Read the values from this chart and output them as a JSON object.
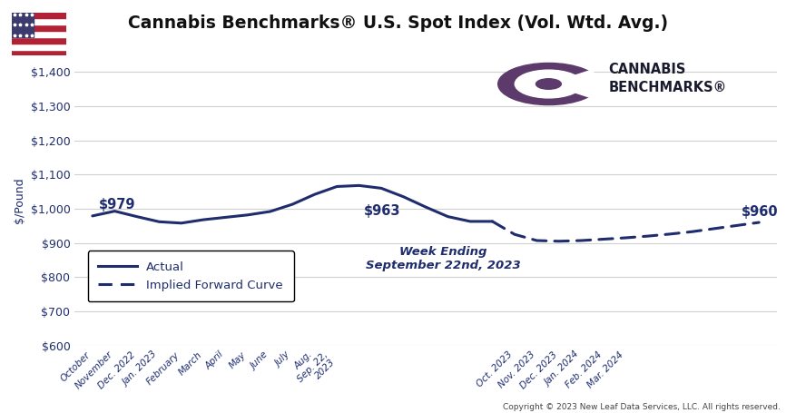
{
  "title": "Cannabis Benchmarks® U.S. Spot Index (Vol. Wtd. Avg.)",
  "ylabel": "$/Pound",
  "copyright": "Copyright © 2023 New Leaf Data Services, LLC. All rights reserved.",
  "line_color": "#1f2d6e",
  "background_color": "#ffffff",
  "grid_color": "#d0d0d0",
  "ylim": [
    600,
    1450
  ],
  "yticks": [
    600,
    700,
    800,
    900,
    1000,
    1100,
    1200,
    1300,
    1400
  ],
  "logo_color": "#5c3a6b",
  "legend_actual": "Actual",
  "legend_forward": "Implied Forward Curve",
  "tick_color": "#1f2d6e",
  "actual_x": [
    0,
    1,
    2,
    3,
    4,
    5,
    6,
    7,
    8,
    9,
    10,
    11,
    12,
    13,
    14,
    15,
    16,
    17,
    18
  ],
  "actual_y": [
    979,
    993,
    977,
    962,
    958,
    968,
    975,
    982,
    992,
    1013,
    1042,
    1065,
    1068,
    1060,
    1035,
    1005,
    977,
    963,
    963
  ],
  "forward_x": [
    18,
    19,
    20,
    21,
    22,
    23,
    24,
    25,
    26,
    27,
    28,
    29,
    30
  ],
  "forward_y": [
    963,
    925,
    907,
    905,
    907,
    911,
    915,
    920,
    926,
    933,
    942,
    951,
    960
  ],
  "tick_positions": [
    0,
    1,
    2,
    3,
    4,
    5,
    6,
    7,
    8,
    9,
    10,
    11,
    19,
    20,
    21,
    22,
    23,
    24
  ],
  "tick_labels": [
    "October",
    "November",
    "Dec. 2022",
    "Jan. 2023",
    "February",
    "March",
    "April",
    "May",
    "June",
    "July",
    "Aug.",
    "Sep. 22,\n2023",
    "Oct. 2023",
    "Nov. 2023",
    "Dec. 2023",
    "Jan. 2024",
    "Feb. 2024",
    "Mar. 2024"
  ],
  "xlim": [
    -0.8,
    30.8
  ]
}
